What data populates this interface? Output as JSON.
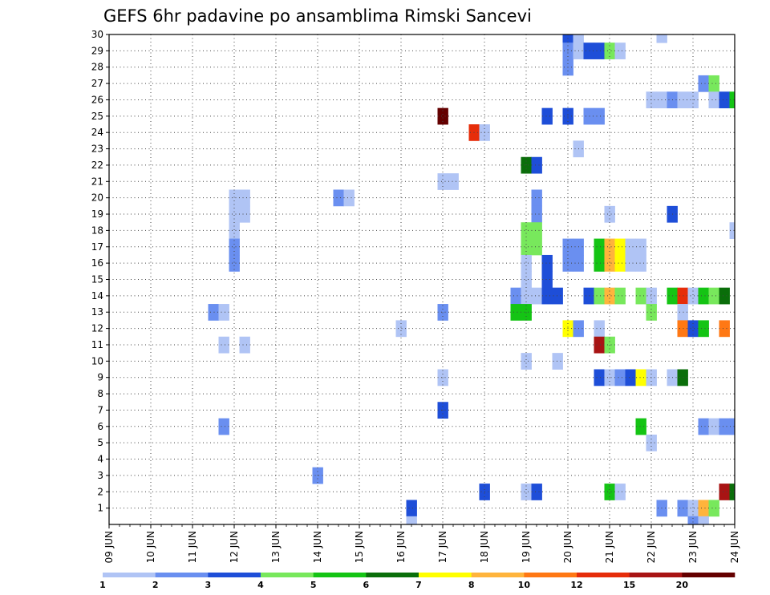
{
  "chart_data": {
    "type": "heatmap",
    "title": "GEFS 6hr padavine po ansamblima Rimski Sancevi",
    "xlabel": "",
    "ylabel": "",
    "x_start": "09 JUN 00Z",
    "step_hours": 6,
    "n_steps": 61,
    "x_ticks": [
      "09 JUN",
      "10 JUN",
      "11 JUN",
      "12 JUN",
      "13 JUN",
      "14 JUN",
      "15 JUN",
      "16 JUN",
      "17 JUN",
      "18 JUN",
      "19 JUN",
      "20 JUN",
      "21 JUN",
      "22 JUN",
      "23 JUN",
      "24 JUN"
    ],
    "y_ticks": [
      1,
      2,
      3,
      4,
      5,
      6,
      7,
      8,
      9,
      10,
      11,
      12,
      13,
      14,
      15,
      16,
      17,
      18,
      19,
      20,
      21,
      22,
      23,
      24,
      25,
      26,
      27,
      28,
      29,
      30
    ],
    "ylim": [
      0,
      30
    ],
    "grid": true,
    "color_bins": [
      {
        "label": "1",
        "color": "#b0c4f5"
      },
      {
        "label": "2",
        "color": "#6a8ff0"
      },
      {
        "label": "3",
        "color": "#1e4ed8"
      },
      {
        "label": "4",
        "color": "#78e85c"
      },
      {
        "label": "5",
        "color": "#14c414"
      },
      {
        "label": "6",
        "color": "#0a6e0a"
      },
      {
        "label": "7",
        "color": "#ffff00"
      },
      {
        "label": "8",
        "color": "#ffb43c"
      },
      {
        "label": "10",
        "color": "#ff7814"
      },
      {
        "label": "12",
        "color": "#e62d0a"
      },
      {
        "label": "15",
        "color": "#a81414"
      },
      {
        "label": "20",
        "color": "#640000"
      }
    ],
    "cells": [
      {
        "member": 30,
        "step": 44,
        "bin": 2
      },
      {
        "member": 30,
        "step": 45,
        "bin": 0
      },
      {
        "member": 30,
        "step": 53,
        "bin": 0
      },
      {
        "member": 29,
        "step": 44,
        "bin": 1
      },
      {
        "member": 29,
        "step": 45,
        "bin": 0
      },
      {
        "member": 29,
        "step": 46,
        "bin": 2
      },
      {
        "member": 29,
        "step": 47,
        "bin": 2
      },
      {
        "member": 29,
        "step": 48,
        "bin": 3
      },
      {
        "member": 29,
        "step": 49,
        "bin": 0
      },
      {
        "member": 28,
        "step": 44,
        "bin": 1
      },
      {
        "member": 27,
        "step": 57,
        "bin": 1
      },
      {
        "member": 27,
        "step": 58,
        "bin": 3
      },
      {
        "member": 26,
        "step": 52,
        "bin": 0
      },
      {
        "member": 26,
        "step": 53,
        "bin": 0
      },
      {
        "member": 26,
        "step": 54,
        "bin": 1
      },
      {
        "member": 26,
        "step": 55,
        "bin": 0
      },
      {
        "member": 26,
        "step": 56,
        "bin": 0
      },
      {
        "member": 26,
        "step": 58,
        "bin": 0
      },
      {
        "member": 26,
        "step": 59,
        "bin": 2
      },
      {
        "member": 26,
        "step": 60,
        "bin": 4
      },
      {
        "member": 25,
        "step": 32,
        "bin": 11
      },
      {
        "member": 25,
        "step": 42,
        "bin": 2
      },
      {
        "member": 25,
        "step": 44,
        "bin": 2
      },
      {
        "member": 25,
        "step": 46,
        "bin": 1
      },
      {
        "member": 25,
        "step": 47,
        "bin": 1
      },
      {
        "member": 24,
        "step": 35,
        "bin": 9
      },
      {
        "member": 24,
        "step": 36,
        "bin": 0
      },
      {
        "member": 23,
        "step": 45,
        "bin": 0
      },
      {
        "member": 22,
        "step": 40,
        "bin": 5
      },
      {
        "member": 22,
        "step": 41,
        "bin": 2
      },
      {
        "member": 21,
        "step": 32,
        "bin": 0
      },
      {
        "member": 21,
        "step": 33,
        "bin": 0
      },
      {
        "member": 20,
        "step": 12,
        "bin": 0
      },
      {
        "member": 20,
        "step": 13,
        "bin": 0
      },
      {
        "member": 20,
        "step": 22,
        "bin": 1
      },
      {
        "member": 20,
        "step": 23,
        "bin": 0
      },
      {
        "member": 20,
        "step": 41,
        "bin": 1
      },
      {
        "member": 19,
        "step": 12,
        "bin": 0
      },
      {
        "member": 19,
        "step": 13,
        "bin": 0
      },
      {
        "member": 19,
        "step": 41,
        "bin": 1
      },
      {
        "member": 19,
        "step": 48,
        "bin": 0
      },
      {
        "member": 19,
        "step": 54,
        "bin": 2
      },
      {
        "member": 18,
        "step": 12,
        "bin": 0
      },
      {
        "member": 18,
        "step": 40,
        "bin": 3
      },
      {
        "member": 18,
        "step": 41,
        "bin": 3
      },
      {
        "member": 18,
        "step": 60,
        "bin": 0
      },
      {
        "member": 17,
        "step": 12,
        "bin": 1
      },
      {
        "member": 17,
        "step": 40,
        "bin": 3
      },
      {
        "member": 17,
        "step": 41,
        "bin": 3
      },
      {
        "member": 17,
        "step": 44,
        "bin": 1
      },
      {
        "member": 17,
        "step": 45,
        "bin": 1
      },
      {
        "member": 17,
        "step": 47,
        "bin": 4
      },
      {
        "member": 17,
        "step": 48,
        "bin": 7
      },
      {
        "member": 17,
        "step": 49,
        "bin": 6
      },
      {
        "member": 17,
        "step": 50,
        "bin": 0
      },
      {
        "member": 17,
        "step": 51,
        "bin": 0
      },
      {
        "member": 16,
        "step": 12,
        "bin": 1
      },
      {
        "member": 16,
        "step": 40,
        "bin": 0
      },
      {
        "member": 16,
        "step": 42,
        "bin": 2
      },
      {
        "member": 16,
        "step": 44,
        "bin": 1
      },
      {
        "member": 16,
        "step": 45,
        "bin": 1
      },
      {
        "member": 16,
        "step": 47,
        "bin": 4
      },
      {
        "member": 16,
        "step": 48,
        "bin": 7
      },
      {
        "member": 16,
        "step": 49,
        "bin": 6
      },
      {
        "member": 16,
        "step": 50,
        "bin": 0
      },
      {
        "member": 16,
        "step": 51,
        "bin": 0
      },
      {
        "member": 15,
        "step": 40,
        "bin": 0
      },
      {
        "member": 15,
        "step": 42,
        "bin": 2
      },
      {
        "member": 14,
        "step": 39,
        "bin": 1
      },
      {
        "member": 14,
        "step": 40,
        "bin": 0
      },
      {
        "member": 14,
        "step": 41,
        "bin": 0
      },
      {
        "member": 14,
        "step": 42,
        "bin": 2
      },
      {
        "member": 14,
        "step": 43,
        "bin": 2
      },
      {
        "member": 14,
        "step": 46,
        "bin": 2
      },
      {
        "member": 14,
        "step": 47,
        "bin": 3
      },
      {
        "member": 14,
        "step": 48,
        "bin": 7
      },
      {
        "member": 14,
        "step": 49,
        "bin": 3
      },
      {
        "member": 14,
        "step": 51,
        "bin": 3
      },
      {
        "member": 14,
        "step": 52,
        "bin": 0
      },
      {
        "member": 14,
        "step": 54,
        "bin": 4
      },
      {
        "member": 14,
        "step": 55,
        "bin": 9
      },
      {
        "member": 14,
        "step": 56,
        "bin": 0
      },
      {
        "member": 14,
        "step": 57,
        "bin": 4
      },
      {
        "member": 14,
        "step": 58,
        "bin": 3
      },
      {
        "member": 14,
        "step": 59,
        "bin": 5
      },
      {
        "member": 13,
        "step": 10,
        "bin": 1
      },
      {
        "member": 13,
        "step": 11,
        "bin": 0
      },
      {
        "member": 13,
        "step": 32,
        "bin": 1
      },
      {
        "member": 13,
        "step": 39,
        "bin": 4
      },
      {
        "member": 13,
        "step": 40,
        "bin": 4
      },
      {
        "member": 13,
        "step": 52,
        "bin": 3
      },
      {
        "member": 13,
        "step": 55,
        "bin": 0
      },
      {
        "member": 12,
        "step": 28,
        "bin": 0
      },
      {
        "member": 12,
        "step": 44,
        "bin": 6
      },
      {
        "member": 12,
        "step": 45,
        "bin": 1
      },
      {
        "member": 12,
        "step": 47,
        "bin": 0
      },
      {
        "member": 12,
        "step": 55,
        "bin": 8
      },
      {
        "member": 12,
        "step": 56,
        "bin": 2
      },
      {
        "member": 12,
        "step": 57,
        "bin": 4
      },
      {
        "member": 12,
        "step": 59,
        "bin": 8
      },
      {
        "member": 11,
        "step": 11,
        "bin": 0
      },
      {
        "member": 11,
        "step": 13,
        "bin": 0
      },
      {
        "member": 11,
        "step": 47,
        "bin": 10
      },
      {
        "member": 11,
        "step": 48,
        "bin": 3
      },
      {
        "member": 10,
        "step": 40,
        "bin": 0
      },
      {
        "member": 10,
        "step": 43,
        "bin": 0
      },
      {
        "member": 9,
        "step": 32,
        "bin": 0
      },
      {
        "member": 9,
        "step": 47,
        "bin": 2
      },
      {
        "member": 9,
        "step": 48,
        "bin": 0
      },
      {
        "member": 9,
        "step": 49,
        "bin": 1
      },
      {
        "member": 9,
        "step": 50,
        "bin": 2
      },
      {
        "member": 9,
        "step": 51,
        "bin": 6
      },
      {
        "member": 9,
        "step": 52,
        "bin": 0
      },
      {
        "member": 9,
        "step": 54,
        "bin": 0
      },
      {
        "member": 9,
        "step": 55,
        "bin": 5
      },
      {
        "member": 7,
        "step": 32,
        "bin": 2
      },
      {
        "member": 6,
        "step": 11,
        "bin": 1
      },
      {
        "member": 6,
        "step": 51,
        "bin": 4
      },
      {
        "member": 6,
        "step": 57,
        "bin": 1
      },
      {
        "member": 6,
        "step": 58,
        "bin": 0
      },
      {
        "member": 6,
        "step": 59,
        "bin": 1
      },
      {
        "member": 6,
        "step": 60,
        "bin": 1
      },
      {
        "member": 5,
        "step": 52,
        "bin": 0
      },
      {
        "member": 3,
        "step": 20,
        "bin": 1
      },
      {
        "member": 2,
        "step": 36,
        "bin": 2
      },
      {
        "member": 2,
        "step": 40,
        "bin": 0
      },
      {
        "member": 2,
        "step": 41,
        "bin": 2
      },
      {
        "member": 2,
        "step": 48,
        "bin": 4
      },
      {
        "member": 2,
        "step": 49,
        "bin": 0
      },
      {
        "member": 2,
        "step": 59,
        "bin": 10
      },
      {
        "member": 2,
        "step": 60,
        "bin": 5
      },
      {
        "member": 1,
        "step": 29,
        "bin": 2
      },
      {
        "member": 1,
        "step": 53,
        "bin": 1
      },
      {
        "member": 1,
        "step": 55,
        "bin": 1
      },
      {
        "member": 1,
        "step": 56,
        "bin": 0
      },
      {
        "member": 1,
        "step": 57,
        "bin": 7
      },
      {
        "member": 1,
        "step": 58,
        "bin": 3
      },
      {
        "member": 0,
        "step": 29,
        "bin": 0
      },
      {
        "member": 0,
        "step": 56,
        "bin": 1
      },
      {
        "member": 0,
        "step": 57,
        "bin": 0
      }
    ]
  }
}
